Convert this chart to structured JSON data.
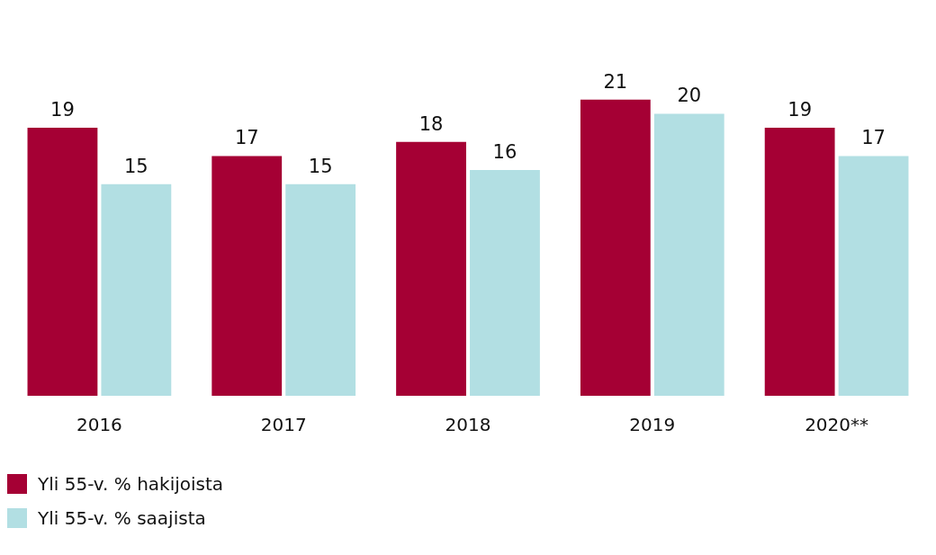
{
  "chart_data": {
    "type": "bar",
    "categories": [
      "2016",
      "2017",
      "2018",
      "2019",
      "2020**"
    ],
    "series": [
      {
        "name": "Yli 55-v. % hakijoista",
        "color": "#a50034",
        "values": [
          19,
          17,
          18,
          21,
          19
        ]
      },
      {
        "name": "Yli 55-v. % saajista",
        "color": "#b2dfe3",
        "values": [
          15,
          15,
          16,
          20,
          17
        ]
      }
    ],
    "data_labels": true,
    "legend": "bottom left",
    "grid": false
  }
}
